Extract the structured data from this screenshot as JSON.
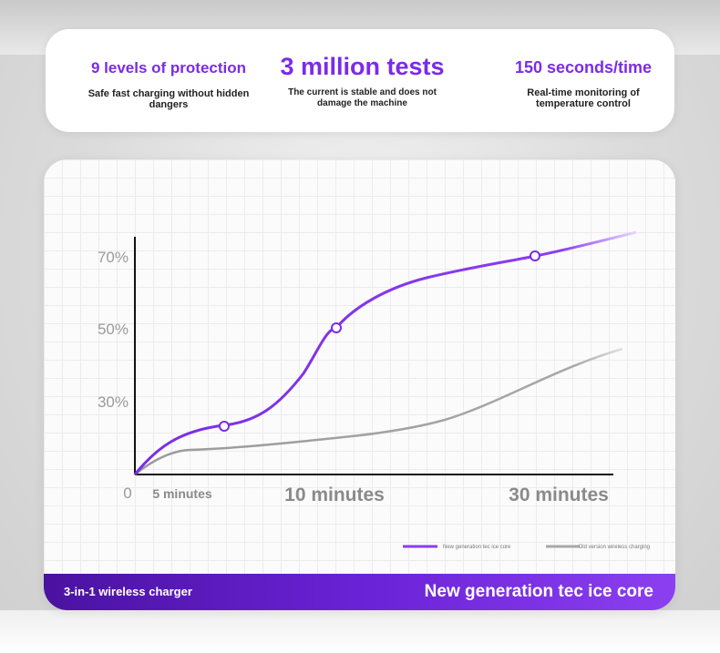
{
  "stats": [
    {
      "title": "9 levels of protection",
      "desc": "Safe fast charging without hidden dangers"
    },
    {
      "title": "3 million tests",
      "desc": "The current is stable and does not damage the machine"
    },
    {
      "title": "150 seconds/time",
      "desc": "Real-time monitoring of temperature control"
    }
  ],
  "colors": {
    "accent": "#7b2be8",
    "new_series": "#8a3df0",
    "old_series": "#a8a8a8"
  },
  "chart_data": {
    "type": "line",
    "yticks": [
      "70%",
      "50%",
      "30%"
    ],
    "xticks": [
      "0",
      "5 minutes",
      "10 minutes",
      "30 minutes"
    ],
    "series": [
      {
        "name": "New generation tec ice core",
        "points": [
          [
            0,
            0
          ],
          [
            5,
            14
          ],
          [
            10,
            41
          ],
          [
            30,
            60
          ]
        ]
      },
      {
        "name": "Old version wireless charging",
        "points": [
          [
            0,
            0
          ],
          [
            5,
            7
          ],
          [
            10,
            9
          ],
          [
            30,
            25
          ]
        ]
      }
    ],
    "legend_position": "bottom-right",
    "grid": true
  },
  "bottom_bar": {
    "left": "3-in-1 wireless charger",
    "right": "New generation tec ice core"
  }
}
